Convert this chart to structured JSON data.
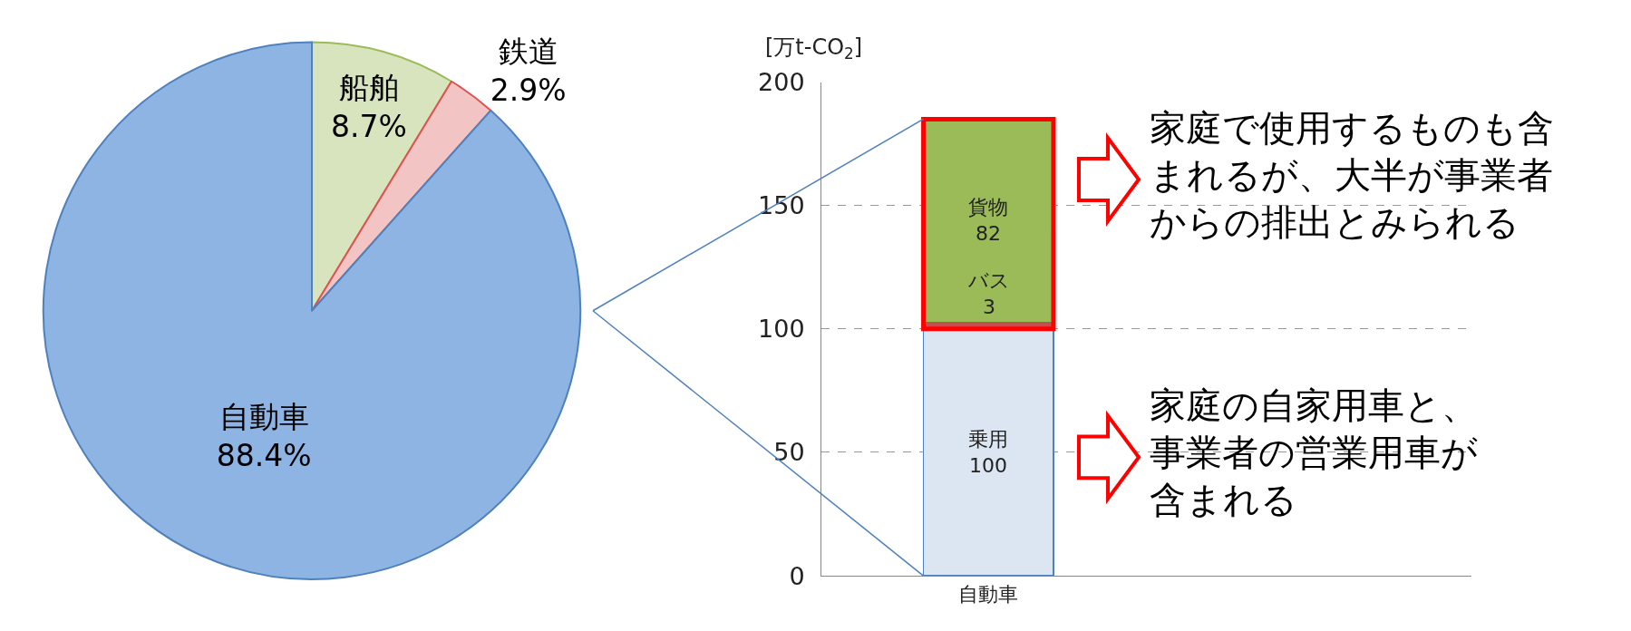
{
  "chart_data": [
    {
      "type": "pie",
      "categories": [
        "船舶",
        "鉄道",
        "自動車"
      ],
      "values": [
        8.7,
        2.9,
        88.4
      ],
      "value_labels": [
        "8.7%",
        "2.9%",
        "88.4%"
      ],
      "colors": [
        "#d7e4bd",
        "#f2c4c4",
        "#8eb4e3"
      ]
    },
    {
      "type": "bar",
      "stacked": true,
      "categories": [
        "自動車"
      ],
      "ylabel": "[万t-CO$_{2}$]",
      "ylim": [
        0,
        200
      ],
      "yticks": [
        0,
        50,
        100,
        150,
        200
      ],
      "grid": "y",
      "data_labels": true,
      "series": [
        {
          "name": "乗用",
          "color": "#dce6f2",
          "values": [
            100
          ]
        },
        {
          "name": "バス",
          "color": "#c0504d",
          "values": [
            3
          ]
        },
        {
          "name": "貨物",
          "color": "#9bbb59",
          "values": [
            82
          ]
        }
      ],
      "annotations": [
        "家庭で使用するものも含まれるが、大半が事業者からの排出とみられる",
        "家庭の自家用車と、事業者の営業用車が含まれる"
      ]
    }
  ]
}
